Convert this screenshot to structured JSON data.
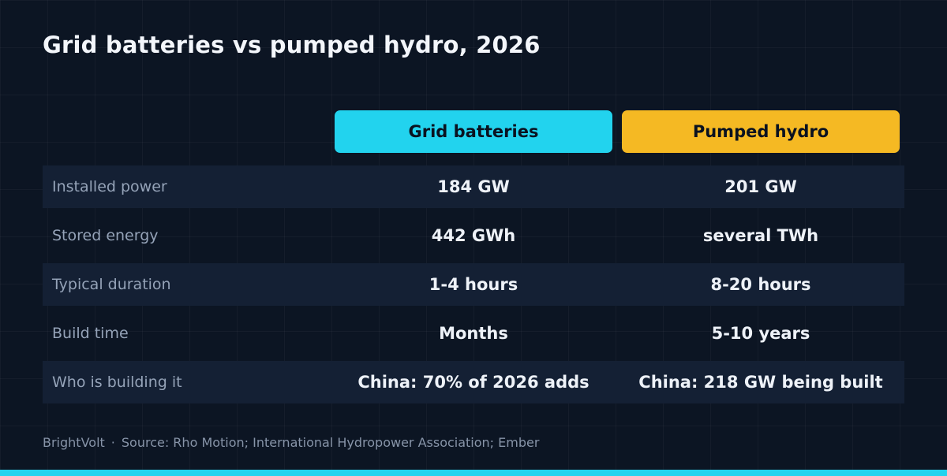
{
  "title": "Grid batteries vs pumped hydro, 2026",
  "colors": {
    "background": "#0c1523",
    "batteries": "#22d3ee",
    "hydro": "#f5b923",
    "row_shade": "#142034",
    "bottom_bar": "#22d3ee"
  },
  "chart_data": {
    "type": "table",
    "title": "Grid batteries vs pumped hydro, 2026",
    "columns": [
      "Grid batteries",
      "Pumped hydro"
    ],
    "rows": [
      {
        "label": "Installed power",
        "values": [
          "184 GW",
          "201 GW"
        ]
      },
      {
        "label": "Stored energy",
        "values": [
          "442 GWh",
          "several TWh"
        ]
      },
      {
        "label": "Typical duration",
        "values": [
          "1-4 hours",
          "8-20 hours"
        ]
      },
      {
        "label": "Build time",
        "values": [
          "Months",
          "5-10 years"
        ]
      },
      {
        "label": "Who is building it",
        "values": [
          "China: 70% of 2026 adds",
          "China: 218 GW being built"
        ]
      }
    ]
  },
  "footer": {
    "brand": "BrightVolt",
    "separator": "·",
    "source": "Source: Rho Motion; International Hydropower Association; Ember"
  }
}
